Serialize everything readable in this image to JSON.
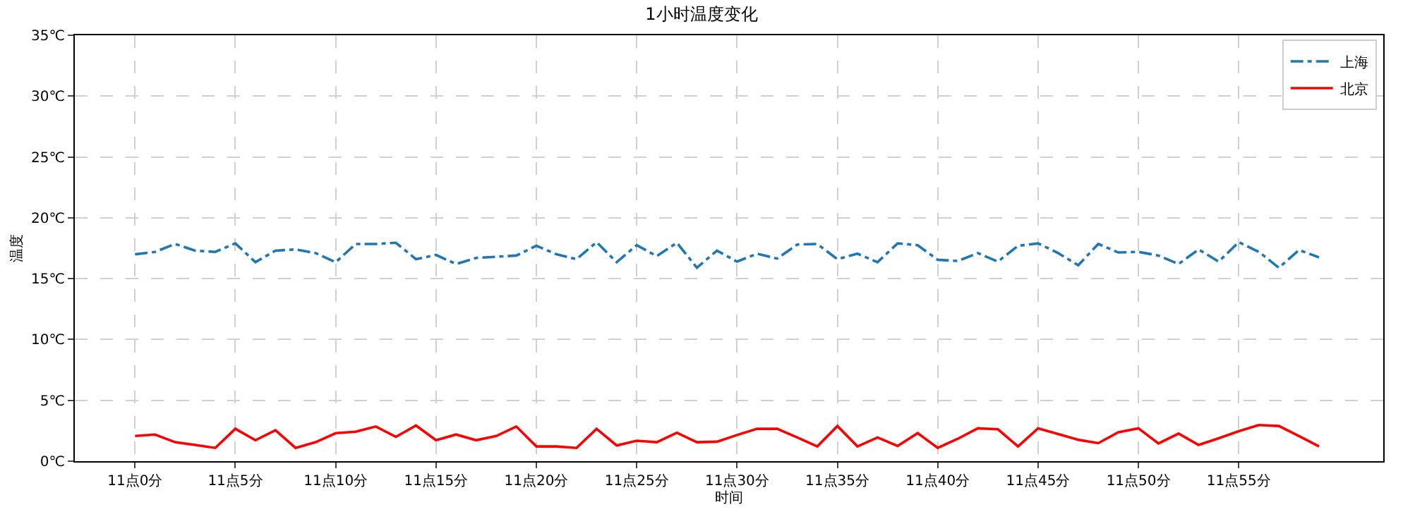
{
  "chart_data": {
    "type": "line",
    "title": "1小时温度变化",
    "xlabel": "时间",
    "ylabel": "温度",
    "categories": [
      "11点0分",
      null,
      null,
      null,
      null,
      "11点5分",
      null,
      null,
      null,
      null,
      "11点10分",
      null,
      null,
      null,
      null,
      "11点15分",
      null,
      null,
      null,
      null,
      "11点20分",
      null,
      null,
      null,
      null,
      "11点25分",
      null,
      null,
      null,
      null,
      "11点30分",
      null,
      null,
      null,
      null,
      "11点35分",
      null,
      null,
      null,
      null,
      "11点40分",
      null,
      null,
      null,
      null,
      "11点45分",
      null,
      null,
      null,
      null,
      "11点50分",
      null,
      null,
      null,
      null,
      "11点55分",
      null,
      null,
      null,
      null
    ],
    "series": [
      {
        "name": "上海",
        "color": "#1f77b4",
        "line_style": "dashdot",
        "values": [
          17.0,
          17.2,
          17.85,
          17.3,
          17.2,
          17.9,
          16.35,
          17.3,
          17.4,
          17.1,
          16.35,
          17.85,
          17.85,
          17.95,
          16.6,
          16.95,
          16.2,
          16.7,
          16.8,
          16.9,
          17.7,
          17.0,
          16.6,
          18.0,
          16.35,
          17.75,
          16.85,
          17.95,
          15.9,
          17.3,
          16.4,
          17.05,
          16.65,
          17.8,
          17.85,
          16.6,
          17.05,
          16.35,
          17.9,
          17.75,
          16.55,
          16.45,
          17.1,
          16.4,
          17.7,
          17.9,
          17.1,
          16.1,
          17.85,
          17.15,
          17.2,
          16.9,
          16.2,
          17.4,
          16.4,
          18.0,
          17.2,
          15.9,
          17.35,
          16.75
        ]
      },
      {
        "name": "北京",
        "color": "#ff0000",
        "line_style": "solid",
        "values": [
          2.07,
          2.19,
          1.56,
          1.33,
          1.09,
          2.66,
          1.72,
          2.54,
          1.09,
          1.56,
          2.3,
          2.42,
          2.85,
          2.0,
          2.93,
          1.72,
          2.19,
          1.72,
          2.07,
          2.85,
          1.21,
          1.21,
          1.09,
          2.66,
          1.29,
          1.68,
          1.56,
          2.34,
          1.56,
          1.6,
          2.15,
          2.66,
          2.66,
          1.95,
          1.21,
          2.89,
          1.21,
          1.95,
          1.25,
          2.3,
          1.09,
          1.84,
          2.7,
          2.62,
          1.21,
          2.7,
          2.23,
          1.76,
          1.48,
          2.38,
          2.7,
          1.45,
          2.27,
          1.33,
          1.88,
          2.46,
          2.97,
          2.89,
          2.07,
          1.21
        ]
      }
    ],
    "ylim": [
      0,
      35
    ],
    "yticks": [
      {
        "value": 0,
        "label": "0℃"
      },
      {
        "value": 5,
        "label": "5℃"
      },
      {
        "value": 10,
        "label": "10℃"
      },
      {
        "value": 15,
        "label": "15℃"
      },
      {
        "value": 20,
        "label": "20℃"
      },
      {
        "value": 25,
        "label": "25℃"
      },
      {
        "value": 30,
        "label": "30℃"
      },
      {
        "value": 35,
        "label": "35℃"
      }
    ],
    "grid": true,
    "legend": "top right",
    "marker": "none"
  }
}
